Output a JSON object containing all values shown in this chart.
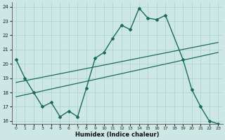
{
  "xlabel": "Humidex (Indice chaleur)",
  "bg_color": "#cde8e4",
  "line_color": "#1a6b5e",
  "grid_color": "#aed4ce",
  "xlim": [
    -0.5,
    23.5
  ],
  "ylim": [
    15.8,
    24.3
  ],
  "yticks": [
    16,
    17,
    18,
    19,
    20,
    21,
    22,
    23,
    24
  ],
  "xticks": [
    0,
    1,
    2,
    3,
    4,
    5,
    6,
    7,
    8,
    9,
    10,
    11,
    12,
    13,
    14,
    15,
    16,
    17,
    18,
    19,
    20,
    21,
    22,
    23
  ],
  "line1_x": [
    0,
    1,
    2,
    3,
    4,
    5,
    6,
    7,
    8,
    9,
    10,
    11,
    12,
    13,
    14,
    15,
    16,
    17,
    19,
    20,
    21,
    22,
    23
  ],
  "line1_y": [
    20.3,
    19.0,
    18.0,
    17.0,
    17.3,
    16.3,
    16.7,
    16.3,
    18.3,
    20.4,
    20.8,
    21.8,
    22.7,
    22.4,
    23.9,
    23.2,
    23.1,
    23.4,
    20.3,
    18.2,
    17.0,
    16.0,
    15.8
  ],
  "line2_x": [
    0,
    23
  ],
  "line2_y": [
    17.7,
    20.8
  ],
  "line3_x": [
    0,
    23
  ],
  "line3_y": [
    18.7,
    21.5
  ]
}
